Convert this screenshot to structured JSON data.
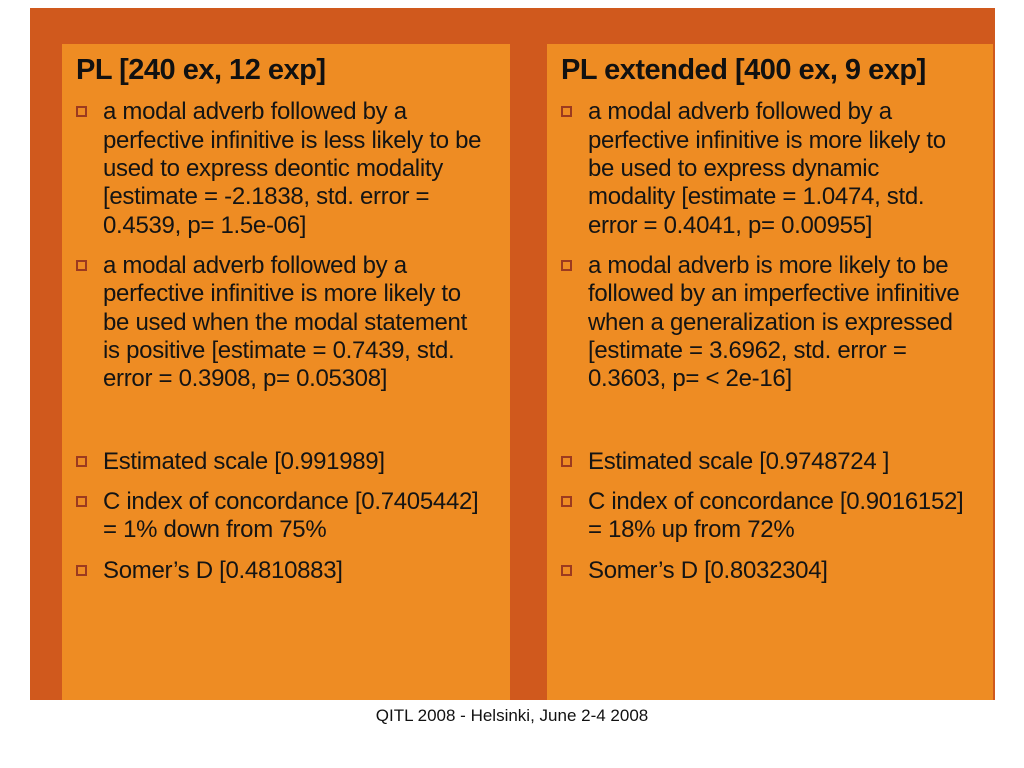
{
  "slide": {
    "footer": "QITL 2008 - Helsinki, June 2-4 2008",
    "colors": {
      "slide_bg": "#d0591d",
      "panel_bg": "#ee8c23",
      "bullet_outline": "#9c3a1f"
    },
    "panels": [
      {
        "title": "PL [240 ex, 12 exp]",
        "bullets": [
          "a modal adverb followed by a perfective infinitive is less likely to be used to express deontic modality [estimate = -2.1838, std. error = 0.4539, p= 1.5e-06]",
          "a modal adverb followed by a perfective infinitive is more likely to be used when the modal statement is positive [estimate = 0.7439, std. error = 0.3908, p= 0.05308]",
          "Estimated scale [0.991989]",
          "C index of concordance [0.7405442] = 1% down from 75%",
          "Somer’s D [0.4810883]"
        ]
      },
      {
        "title": "PL extended [400 ex, 9 exp]",
        "bullets": [
          "a modal adverb followed by a perfective infinitive is more likely to be used to express dynamic modality [estimate = 1.0474, std. error = 0.4041, p= 0.00955]",
          "a modal adverb is more likely to be followed by an imperfective infinitive when a generalization is expressed [estimate = 3.6962, std. error = 0.3603, p= < 2e-16]",
          "Estimated scale [0.9748724 ]",
          "C index of concordance [0.9016152] = 18% up from 72%",
          "Somer’s D [0.8032304]"
        ]
      }
    ]
  }
}
